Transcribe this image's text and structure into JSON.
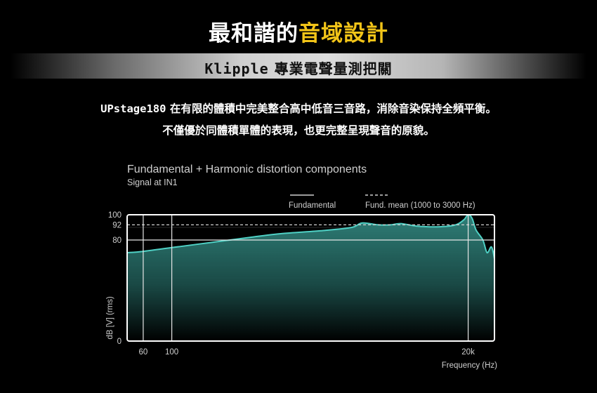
{
  "headline": {
    "white": "最和諧的",
    "yellow": "音域設計"
  },
  "banner": {
    "brand": "Klipple",
    "rest": " 專業電聲量測把關"
  },
  "description": {
    "product": "UPstage180",
    "line1_rest": " 在有限的體積中完美整合高中低音三音路，消除音染保持全頻平衡。",
    "line2": "不僅優於同體積單體的表現，也更完整呈現聲音的原貌。"
  },
  "colors": {
    "accent": "#f2c418",
    "curve": "#4fd0c4",
    "fill_top": "#2f7f78",
    "plot_border": "#ffffff"
  },
  "chart_data": {
    "type": "area",
    "title": "Fundamental + Harmonic distortion components",
    "subtitle": "Signal at IN1",
    "xlabel": "Frequency (Hz)",
    "ylabel": "dB [V] (rms)",
    "x_scale": "log",
    "xlim": [
      45,
      32000
    ],
    "ylim": [
      0,
      100
    ],
    "x_ticks": [
      {
        "value": 60,
        "label": "60"
      },
      {
        "value": 100,
        "label": "100"
      },
      {
        "value": 20000,
        "label": "20k"
      }
    ],
    "y_ticks": [
      {
        "value": 100,
        "label": "100"
      },
      {
        "value": 92,
        "label": "92"
      },
      {
        "value": 80,
        "label": "80"
      },
      {
        "value": 0,
        "label": "0"
      }
    ],
    "grid": true,
    "legend_position": "top-right",
    "series": [
      {
        "name": "Fundamental",
        "style": "solid",
        "points": [
          [
            45,
            70
          ],
          [
            60,
            71
          ],
          [
            100,
            74
          ],
          [
            200,
            78
          ],
          [
            400,
            82
          ],
          [
            700,
            85
          ],
          [
            1500,
            87.5
          ],
          [
            2500,
            90
          ],
          [
            3000,
            93.5
          ],
          [
            4000,
            92
          ],
          [
            5000,
            92
          ],
          [
            6000,
            93
          ],
          [
            8000,
            91
          ],
          [
            12000,
            90.5
          ],
          [
            16000,
            92
          ],
          [
            18500,
            96
          ],
          [
            20000,
            100
          ],
          [
            21500,
            97
          ],
          [
            23000,
            88
          ],
          [
            26000,
            80
          ],
          [
            28000,
            70
          ],
          [
            30000,
            74.5
          ],
          [
            31000,
            72
          ],
          [
            32000,
            65
          ]
        ]
      },
      {
        "name": "Fund. mean (1000 to 3000 Hz)",
        "style": "dashed",
        "value": 92
      }
    ]
  }
}
